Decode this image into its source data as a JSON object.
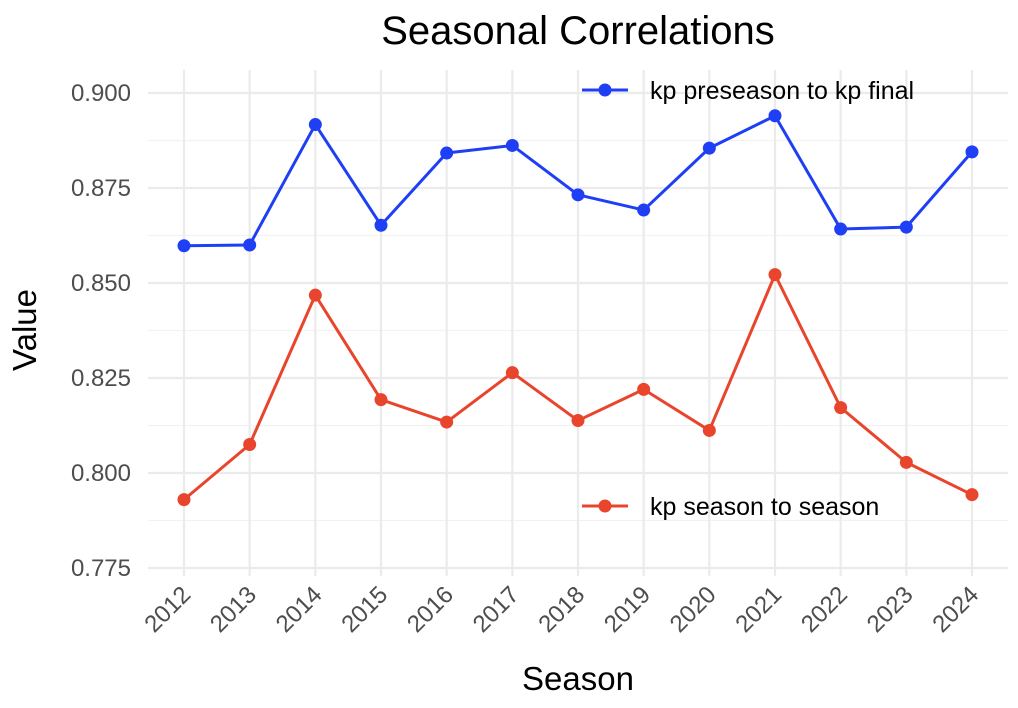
{
  "chart_data": {
    "type": "line",
    "title": "Seasonal Correlations",
    "xlabel": "Season",
    "ylabel": "Value",
    "categories": [
      "2012",
      "2013",
      "2014",
      "2015",
      "2016",
      "2017",
      "2018",
      "2019",
      "2020",
      "2021",
      "2022",
      "2023",
      "2024"
    ],
    "ylim": [
      0.775,
      0.905
    ],
    "yticks": [
      "0.775",
      "0.800",
      "0.825",
      "0.850",
      "0.875",
      "0.900"
    ],
    "grid": true,
    "series": [
      {
        "name": "kp preseason to kp final",
        "color": "#1f3ff5",
        "values": [
          0.8598,
          0.86,
          0.8917,
          0.8652,
          0.8842,
          0.8862,
          0.8732,
          0.8692,
          0.8855,
          0.894,
          0.8642,
          0.8647,
          0.8845
        ],
        "legend_position": "top-right"
      },
      {
        "name": "kp season to season",
        "color": "#e8452c",
        "values": [
          0.793,
          0.8075,
          0.8468,
          0.8193,
          0.8134,
          0.8264,
          0.8138,
          0.822,
          0.8112,
          0.8522,
          0.8172,
          0.8028,
          0.7943
        ],
        "legend_position": "bottom-right"
      }
    ]
  }
}
